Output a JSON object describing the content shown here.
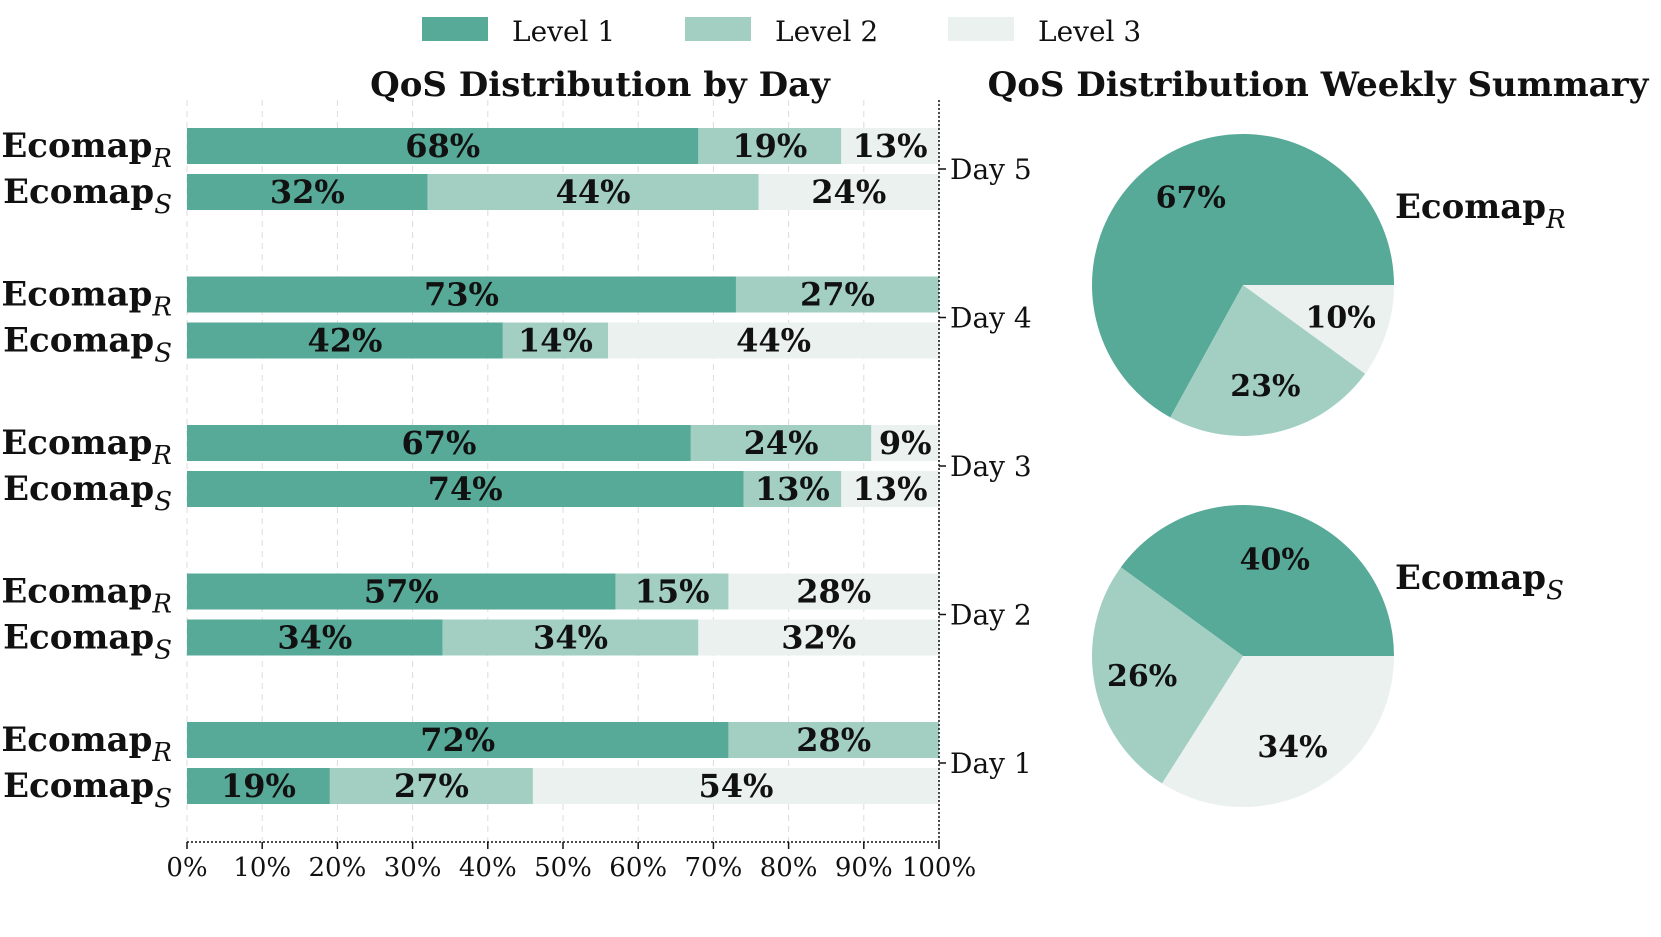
{
  "colors": {
    "level1": "#57a998",
    "level2": "#a3cfc3",
    "level3": "#eaf1ee"
  },
  "legend": [
    "Level 1",
    "Level 2",
    "Level 3"
  ],
  "chart_data": [
    {
      "type": "bar",
      "orientation": "horizontal",
      "stacked": true,
      "title": "QoS Distribution by Day",
      "xlim": [
        0,
        100
      ],
      "x_ticks": [
        "0%",
        "10%",
        "20%",
        "30%",
        "40%",
        "50%",
        "60%",
        "70%",
        "80%",
        "90%",
        "100%"
      ],
      "day_labels": [
        "Day 5",
        "Day 4",
        "Day 3",
        "Day 2",
        "Day 1"
      ],
      "method_labels": [
        {
          "base": "Ecomap",
          "sub": "R"
        },
        {
          "base": "Ecomap",
          "sub": "S"
        }
      ],
      "days": [
        {
          "day": "Day 5",
          "bars": [
            {
              "method": "R",
              "values": [
                68,
                19,
                13
              ],
              "labels": [
                "68%",
                "19%",
                "13%"
              ]
            },
            {
              "method": "S",
              "values": [
                32,
                44,
                24
              ],
              "labels": [
                "32%",
                "44%",
                "24%"
              ]
            }
          ]
        },
        {
          "day": "Day 4",
          "bars": [
            {
              "method": "R",
              "values": [
                73,
                27,
                0
              ],
              "labels": [
                "73%",
                "27%",
                ""
              ]
            },
            {
              "method": "S",
              "values": [
                42,
                14,
                44
              ],
              "labels": [
                "42%",
                "14%",
                "44%"
              ]
            }
          ]
        },
        {
          "day": "Day 3",
          "bars": [
            {
              "method": "R",
              "values": [
                67,
                24,
                9
              ],
              "labels": [
                "67%",
                "24%",
                "9%"
              ]
            },
            {
              "method": "S",
              "values": [
                74,
                13,
                13
              ],
              "labels": [
                "74%",
                "13%",
                "13%"
              ]
            }
          ]
        },
        {
          "day": "Day 2",
          "bars": [
            {
              "method": "R",
              "values": [
                57,
                15,
                28
              ],
              "labels": [
                "57%",
                "15%",
                "28%"
              ]
            },
            {
              "method": "S",
              "values": [
                34,
                34,
                32
              ],
              "labels": [
                "34%",
                "34%",
                "32%"
              ]
            }
          ]
        },
        {
          "day": "Day 1",
          "bars": [
            {
              "method": "R",
              "values": [
                72,
                28,
                0
              ],
              "labels": [
                "72%",
                "28%",
                ""
              ]
            },
            {
              "method": "S",
              "values": [
                19,
                27,
                54
              ],
              "labels": [
                "19%",
                "27%",
                "54%"
              ]
            }
          ]
        }
      ]
    },
    {
      "type": "pie",
      "title": "QoS Distribution Weekly Summary",
      "pies": [
        {
          "base": "Ecomap",
          "sub": "R",
          "values": [
            67,
            23,
            10
          ],
          "labels": [
            "67%",
            "23%",
            "10%"
          ]
        },
        {
          "base": "Ecomap",
          "sub": "S",
          "values": [
            40,
            26,
            34
          ],
          "labels": [
            "40%",
            "26%",
            "34%"
          ]
        }
      ]
    }
  ]
}
